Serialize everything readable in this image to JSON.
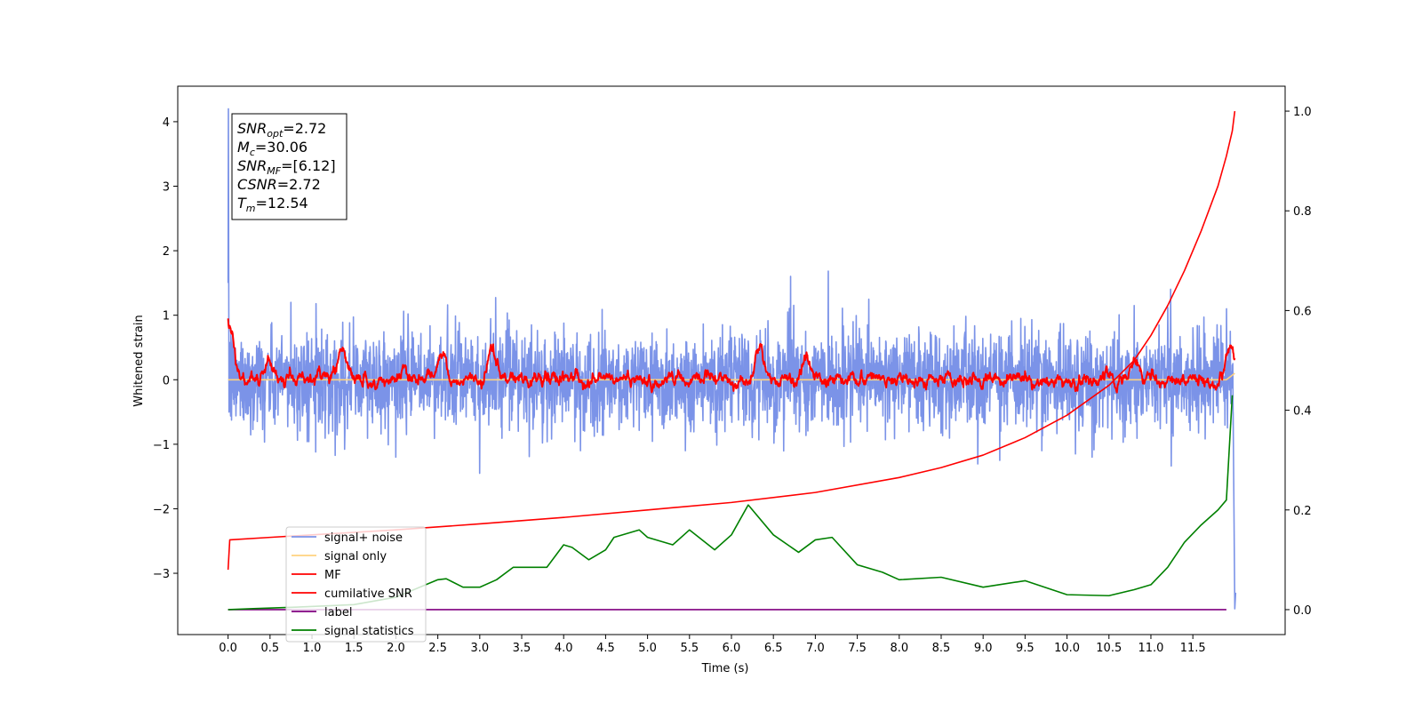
{
  "chart_data": {
    "type": "line",
    "title": "",
    "xlabel": "Time (s)",
    "ylabel": "Whitened strain",
    "y2label": "",
    "xlim": [
      -0.6,
      12.6
    ],
    "ylim": [
      -3.95,
      4.55
    ],
    "y2lim": [
      -0.05,
      1.05
    ],
    "x_ticks": [
      0.0,
      0.5,
      1.0,
      1.5,
      2.0,
      2.5,
      3.0,
      3.5,
      4.0,
      4.5,
      5.0,
      5.5,
      6.0,
      6.5,
      7.0,
      7.5,
      8.0,
      8.5,
      9.0,
      9.5,
      10.0,
      10.5,
      11.0,
      11.5
    ],
    "x_tick_labels": [
      "0.0",
      "0.5",
      "1.0",
      "1.5",
      "2.0",
      "2.5",
      "3.0",
      "3.5",
      "4.0",
      "4.5",
      "5.0",
      "5.5",
      "6.0",
      "6.5",
      "7.0",
      "7.5",
      "8.0",
      "8.5",
      "9.0",
      "9.5",
      "10.0",
      "10.5",
      "11.0",
      "11.5"
    ],
    "y_ticks": [
      -3,
      -2,
      -1,
      0,
      1,
      2,
      3,
      4
    ],
    "y_tick_labels": [
      "−3",
      "−2",
      "−1",
      "0",
      "1",
      "2",
      "3",
      "4"
    ],
    "y2_ticks": [
      0.0,
      0.2,
      0.4,
      0.6,
      0.8,
      1.0
    ],
    "y2_tick_labels": [
      "0.0",
      "0.2",
      "0.4",
      "0.6",
      "0.8",
      "1.0"
    ],
    "annotation": [
      {
        "base": "SNR",
        "sub": "opt",
        "value": "=2.72"
      },
      {
        "base": "M",
        "sub": "c",
        "value": "=30.06"
      },
      {
        "base": "SNR",
        "sub": "MF",
        "value": "=[6.12]"
      },
      {
        "base": "CSNR",
        "sub": "",
        "value": "=2.72"
      },
      {
        "base": "T",
        "sub": "m",
        "value": "=12.54"
      }
    ],
    "legend": {
      "placement": "lower-left",
      "entries": [
        {
          "label": "signal+ noise",
          "color": "#7b93e8"
        },
        {
          "label": "signal only",
          "color": "#ffd27f"
        },
        {
          "label": "MF",
          "color": "#ff0000"
        },
        {
          "label": "cumilative SNR",
          "color": "#ff0000"
        },
        {
          "label": "label",
          "color": "#800080"
        },
        {
          "label": "signal statistics",
          "color": "#008000"
        }
      ]
    },
    "series": [
      {
        "name": "signal+ noise",
        "axis": "left",
        "color": "#7b93e8",
        "style": "noise",
        "x_range": [
          0.0,
          11.98
        ],
        "amplitude": 0.3,
        "spikes": [
          {
            "x": 0.0,
            "y": 4.2
          },
          {
            "x": 0.0,
            "y": 1.75
          },
          {
            "x": 0.75,
            "y": 1.2
          },
          {
            "x": 1.05,
            "y": 1.18
          },
          {
            "x": 2.0,
            "y": -1.2
          },
          {
            "x": 3.0,
            "y": -1.45
          },
          {
            "x": 4.2,
            "y": -1.1
          },
          {
            "x": 5.45,
            "y": -1.1
          },
          {
            "x": 9.2,
            "y": -1.25
          },
          {
            "x": 9.7,
            "y": -1.1
          },
          {
            "x": 10.1,
            "y": -1.15
          },
          {
            "x": 10.3,
            "y": -1.2
          },
          {
            "x": 10.8,
            "y": 1.15
          },
          {
            "x": 11.2,
            "y": 1.12
          },
          {
            "x": 11.9,
            "y": 1.1
          }
        ],
        "tail": [
          {
            "x": 11.98,
            "y": -0.5
          },
          {
            "x": 12.0,
            "y": -3.55
          },
          {
            "x": 12.01,
            "y": -3.3
          }
        ]
      },
      {
        "name": "signal only",
        "axis": "left",
        "color": "#ffd27f",
        "x": [
          0.0,
          11.9,
          11.95,
          12.0
        ],
        "y": [
          0.0,
          0.0,
          0.05,
          0.1
        ]
      },
      {
        "name": "MF",
        "axis": "left",
        "color": "#ff0000",
        "style": "smooth-noise",
        "x_range": [
          0.0,
          12.0
        ],
        "amplitude": 0.1,
        "bumps": [
          {
            "x": 0.02,
            "y": 0.95
          },
          {
            "x": 0.5,
            "y": 0.4
          },
          {
            "x": 1.35,
            "y": 0.62
          },
          {
            "x": 2.55,
            "y": 0.5
          },
          {
            "x": 3.15,
            "y": 0.5
          },
          {
            "x": 6.35,
            "y": 0.5
          },
          {
            "x": 6.9,
            "y": 0.45
          },
          {
            "x": 10.8,
            "y": 0.45
          },
          {
            "x": 11.95,
            "y": 0.55
          }
        ]
      },
      {
        "name": "cumilative SNR",
        "axis": "right",
        "color": "#ff0000",
        "x": [
          0.0,
          0.02,
          0.5,
          1.0,
          2.0,
          3.0,
          4.0,
          5.0,
          6.0,
          7.0,
          8.0,
          8.5,
          9.0,
          9.5,
          10.0,
          10.5,
          10.8,
          11.0,
          11.2,
          11.4,
          11.6,
          11.8,
          11.9,
          11.97,
          12.0
        ],
        "y": [
          0.08,
          0.14,
          0.145,
          0.15,
          0.16,
          0.172,
          0.185,
          0.2,
          0.215,
          0.235,
          0.265,
          0.285,
          0.31,
          0.345,
          0.39,
          0.45,
          0.5,
          0.55,
          0.61,
          0.68,
          0.76,
          0.85,
          0.91,
          0.96,
          1.0
        ]
      },
      {
        "name": "label",
        "axis": "right",
        "color": "#800080",
        "x": [
          0.0,
          11.9
        ],
        "y": [
          0.0,
          0.0
        ]
      },
      {
        "name": "signal statistics",
        "axis": "right",
        "color": "#008000",
        "x": [
          0.0,
          0.3,
          0.8,
          1.5,
          2.0,
          2.5,
          2.6,
          2.8,
          3.0,
          3.2,
          3.4,
          3.5,
          3.8,
          4.0,
          4.1,
          4.3,
          4.5,
          4.6,
          4.9,
          5.0,
          5.3,
          5.5,
          5.8,
          6.0,
          6.2,
          6.5,
          6.8,
          7.0,
          7.2,
          7.5,
          7.8,
          8.0,
          8.5,
          9.0,
          9.5,
          10.0,
          10.5,
          10.8,
          11.0,
          11.2,
          11.4,
          11.6,
          11.8,
          11.9,
          11.97
        ],
        "y": [
          0.0,
          0.002,
          0.005,
          0.01,
          0.025,
          0.06,
          0.062,
          0.045,
          0.045,
          0.06,
          0.085,
          0.085,
          0.085,
          0.13,
          0.125,
          0.1,
          0.12,
          0.145,
          0.16,
          0.145,
          0.13,
          0.16,
          0.12,
          0.15,
          0.21,
          0.15,
          0.115,
          0.14,
          0.145,
          0.09,
          0.075,
          0.06,
          0.065,
          0.045,
          0.058,
          0.03,
          0.028,
          0.04,
          0.05,
          0.085,
          0.135,
          0.17,
          0.2,
          0.22,
          0.43
        ]
      }
    ]
  }
}
